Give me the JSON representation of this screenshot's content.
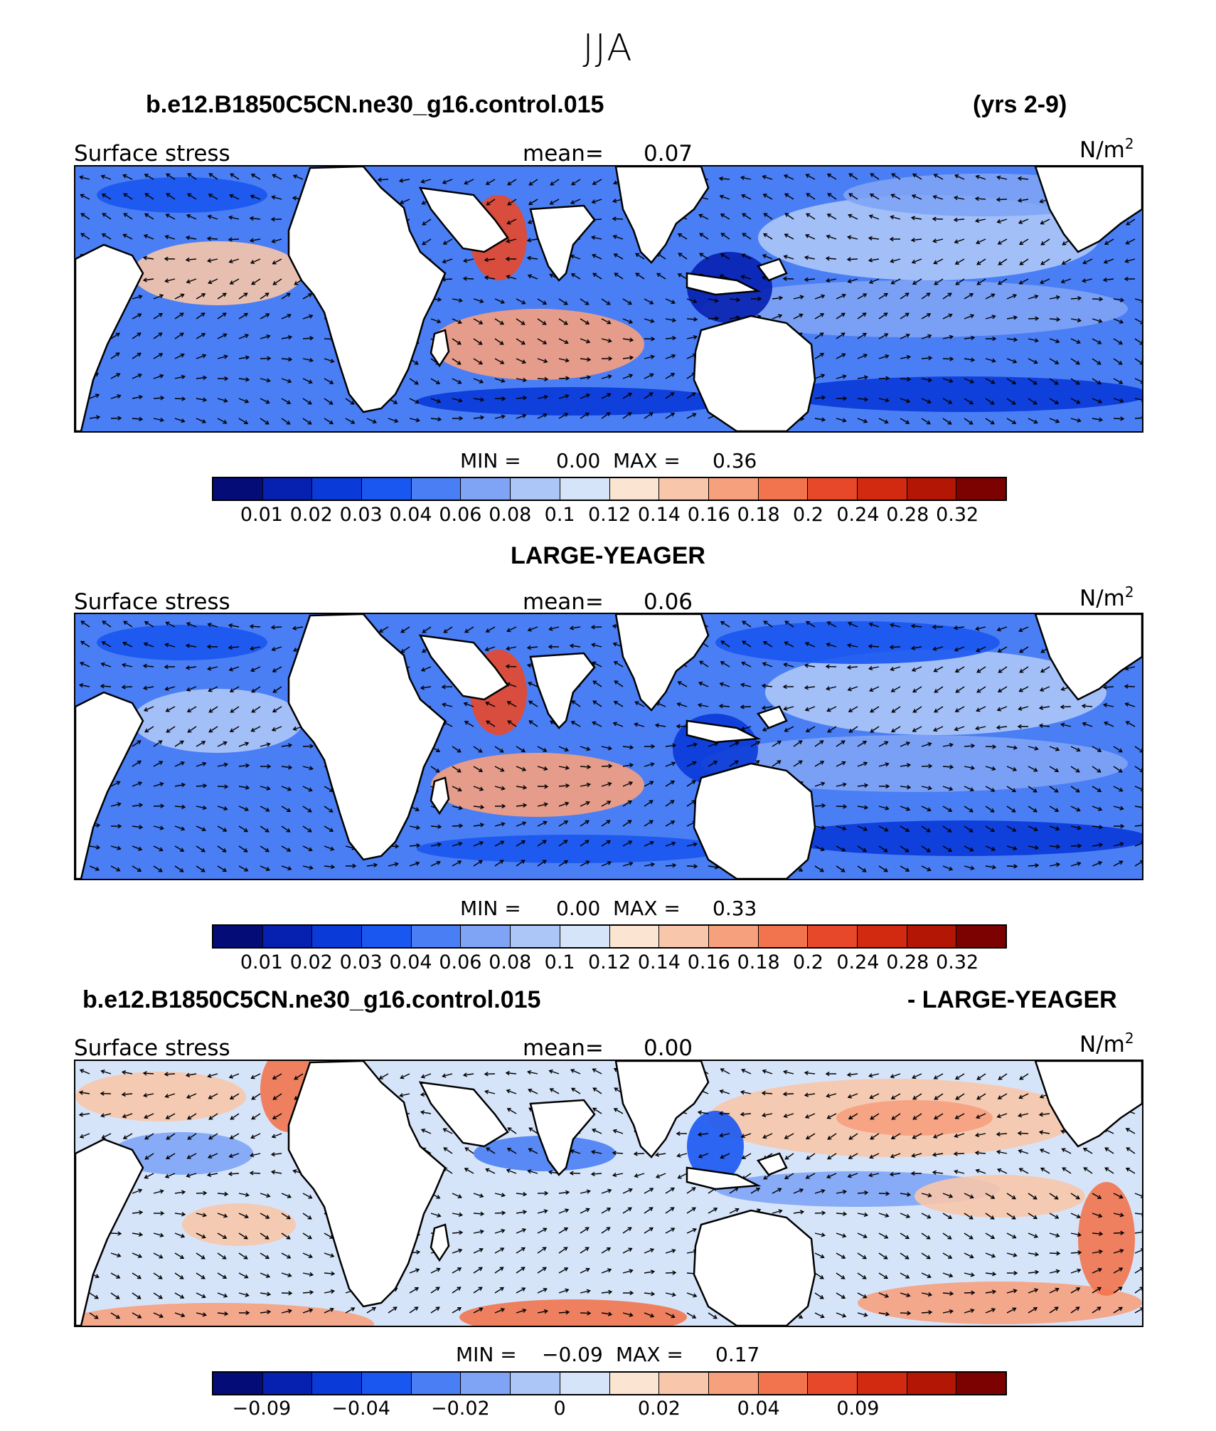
{
  "figure": {
    "title": "JJA",
    "header_left": "b.e12.B1850C5CN.ne30_g16.control.015",
    "header_right": "(yrs 2-9)",
    "mid_title": "LARGE-YEAGER",
    "diff_left": "b.e12.B1850C5CN.ne30_g16.control.015",
    "diff_right": "- LARGE-YEAGER"
  },
  "colors": {
    "abs_palette": [
      "#040c78",
      "#0620b0",
      "#0a3ad8",
      "#1a56f0",
      "#4a7ef4",
      "#7fa4f6",
      "#adc6f8",
      "#d6e4fa",
      "#fbe4d2",
      "#f8c6aa",
      "#f6a07e",
      "#f2744e",
      "#e8482a",
      "#d22a10",
      "#b41606",
      "#7c0202"
    ],
    "diff_palette": [
      "#040c78",
      "#0620b0",
      "#0a3ad8",
      "#1a56f0",
      "#4a7ef4",
      "#7fa4f6",
      "#adc6f8",
      "#d6e4fa",
      "#fbe4d2",
      "#f8c6aa",
      "#f6a07e",
      "#f2744e",
      "#e8482a",
      "#d22a10",
      "#b41606",
      "#7c0202"
    ]
  },
  "panels": [
    {
      "label": "Surface stress",
      "mean_label": "mean=",
      "mean_value": "0.07",
      "units": "N/m",
      "units_exp": "2",
      "min_label": "MIN =",
      "min_value": "0.00",
      "max_label": "MAX =",
      "max_value": "0.36",
      "ticks": [
        "0.01",
        "0.02",
        "0.03",
        "0.04",
        "0.06",
        "0.08",
        "0.1",
        "0.12",
        "0.14",
        "0.16",
        "0.18",
        "0.2",
        "0.24",
        "0.28",
        "0.32"
      ]
    },
    {
      "label": "Surface stress",
      "mean_label": "mean=",
      "mean_value": "0.06",
      "units": "N/m",
      "units_exp": "2",
      "min_label": "MIN =",
      "min_value": "0.00",
      "max_label": "MAX =",
      "max_value": "0.33",
      "ticks": [
        "0.01",
        "0.02",
        "0.03",
        "0.04",
        "0.06",
        "0.08",
        "0.1",
        "0.12",
        "0.14",
        "0.16",
        "0.18",
        "0.2",
        "0.24",
        "0.28",
        "0.32"
      ]
    },
    {
      "label": "Surface stress",
      "mean_label": "mean=",
      "mean_value": "0.00",
      "units": "N/m",
      "units_exp": "2",
      "min_label": "MIN =",
      "min_value": "−0.09",
      "max_label": "MAX =",
      "max_value": "0.17",
      "ticks": [
        "−0.09",
        "",
        "−0.04",
        "",
        "−0.02",
        "",
        "0",
        "",
        "0.02",
        "",
        "0.04",
        "",
        "0.09",
        "",
        ""
      ]
    }
  ]
}
